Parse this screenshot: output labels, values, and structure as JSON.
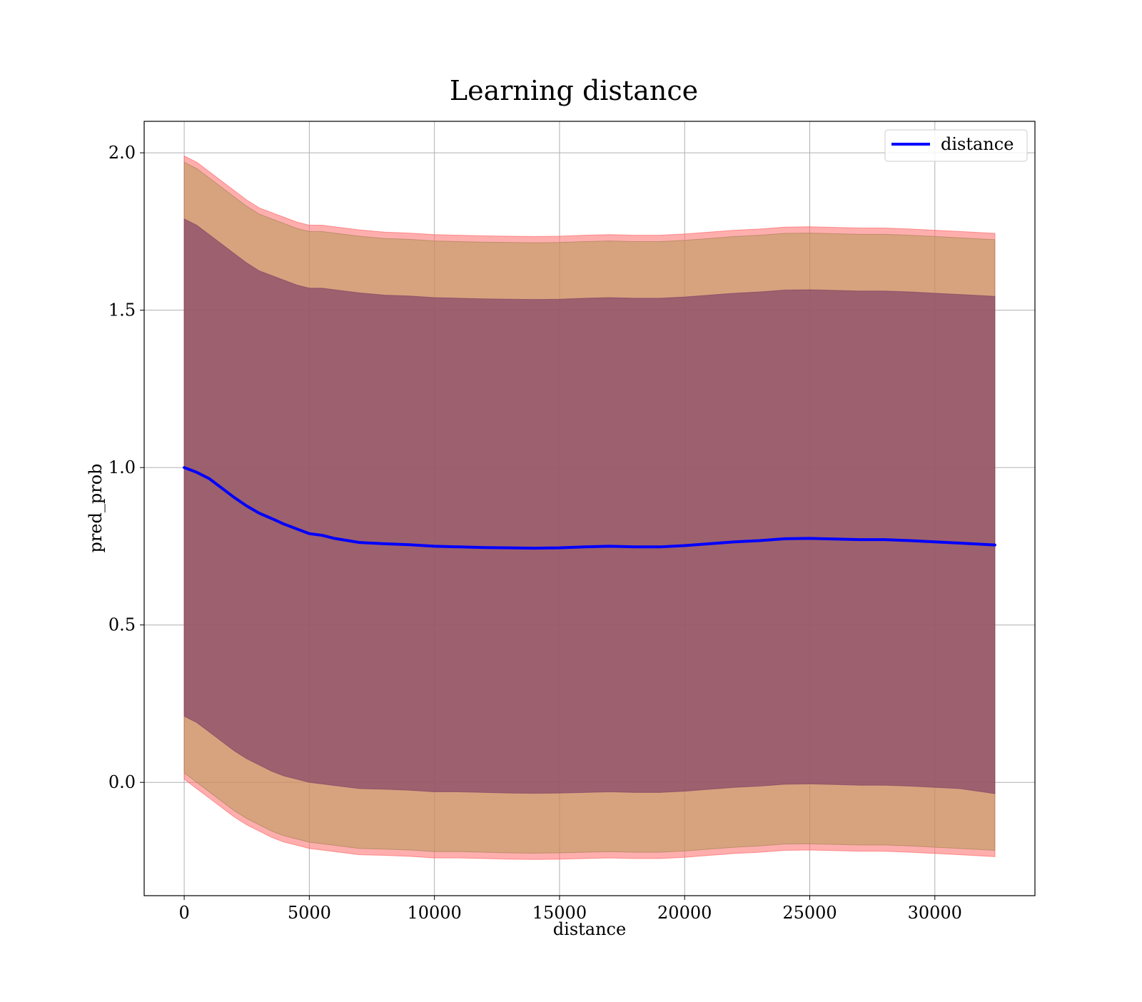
{
  "chart_data": {
    "type": "line",
    "title": "Learning distance",
    "xlabel": "distance",
    "ylabel": "pred_prob",
    "xlim": [
      -1600,
      34000
    ],
    "ylim": [
      -0.36,
      2.1
    ],
    "xticks": [
      0,
      5000,
      10000,
      15000,
      20000,
      25000,
      30000
    ],
    "xtick_labels": [
      "0",
      "5000",
      "10000",
      "15000",
      "20000",
      "25000",
      "30000"
    ],
    "yticks": [
      0.0,
      0.5,
      1.0,
      1.5,
      2.0
    ],
    "ytick_labels": [
      "0.0",
      "0.5",
      "1.0",
      "1.5",
      "2.0"
    ],
    "grid": true,
    "legend_position": "top-right",
    "colors": {
      "line": "#0000ff",
      "outer_band": "#ff6b6b",
      "middle_band": "#b79a58",
      "inner_band": "#8a4a6a"
    },
    "series": [
      {
        "name": "distance",
        "x": [
          0,
          500,
          1000,
          1500,
          2000,
          2500,
          3000,
          3500,
          4000,
          4500,
          5000,
          5500,
          6000,
          7000,
          8000,
          9000,
          10000,
          11000,
          12000,
          13000,
          14000,
          15000,
          16000,
          17000,
          18000,
          19000,
          20000,
          21000,
          22000,
          23000,
          24000,
          25000,
          26000,
          27000,
          28000,
          29000,
          30000,
          31000,
          32400
        ],
        "y": [
          1.0,
          0.985,
          0.965,
          0.935,
          0.905,
          0.878,
          0.855,
          0.838,
          0.82,
          0.805,
          0.79,
          0.785,
          0.775,
          0.762,
          0.758,
          0.755,
          0.75,
          0.748,
          0.746,
          0.745,
          0.744,
          0.745,
          0.748,
          0.75,
          0.748,
          0.748,
          0.752,
          0.758,
          0.764,
          0.768,
          0.774,
          0.775,
          0.773,
          0.771,
          0.771,
          0.768,
          0.764,
          0.76,
          0.754
        ]
      }
    ],
    "bands": [
      {
        "role": "outer",
        "lower": [
          0.01,
          -0.02,
          -0.05,
          -0.08,
          -0.11,
          -0.135,
          -0.155,
          -0.175,
          -0.19,
          -0.2,
          -0.21,
          -0.215,
          -0.22,
          -0.23,
          -0.232,
          -0.235,
          -0.24,
          -0.24,
          -0.242,
          -0.244,
          -0.245,
          -0.244,
          -0.242,
          -0.24,
          -0.242,
          -0.242,
          -0.238,
          -0.232,
          -0.226,
          -0.222,
          -0.216,
          -0.215,
          -0.217,
          -0.219,
          -0.219,
          -0.222,
          -0.226,
          -0.23,
          -0.236
        ],
        "upper": [
          1.99,
          1.97,
          1.94,
          1.91,
          1.88,
          1.85,
          1.825,
          1.81,
          1.795,
          1.78,
          1.77,
          1.77,
          1.765,
          1.755,
          1.748,
          1.745,
          1.74,
          1.738,
          1.736,
          1.735,
          1.734,
          1.735,
          1.738,
          1.74,
          1.738,
          1.738,
          1.742,
          1.748,
          1.754,
          1.758,
          1.764,
          1.765,
          1.763,
          1.761,
          1.761,
          1.758,
          1.754,
          1.75,
          1.744
        ]
      },
      {
        "role": "middle",
        "lower": [
          0.03,
          0.0,
          -0.03,
          -0.06,
          -0.09,
          -0.115,
          -0.135,
          -0.155,
          -0.17,
          -0.18,
          -0.19,
          -0.195,
          -0.2,
          -0.21,
          -0.212,
          -0.215,
          -0.22,
          -0.22,
          -0.222,
          -0.224,
          -0.225,
          -0.224,
          -0.222,
          -0.22,
          -0.222,
          -0.222,
          -0.218,
          -0.212,
          -0.206,
          -0.202,
          -0.196,
          -0.195,
          -0.197,
          -0.199,
          -0.199,
          -0.202,
          -0.206,
          -0.21,
          -0.216
        ],
        "upper": [
          1.97,
          1.95,
          1.92,
          1.89,
          1.86,
          1.83,
          1.805,
          1.79,
          1.775,
          1.76,
          1.75,
          1.75,
          1.745,
          1.735,
          1.728,
          1.725,
          1.72,
          1.718,
          1.716,
          1.715,
          1.714,
          1.715,
          1.718,
          1.72,
          1.718,
          1.718,
          1.722,
          1.728,
          1.734,
          1.738,
          1.744,
          1.745,
          1.743,
          1.741,
          1.741,
          1.738,
          1.734,
          1.73,
          1.724
        ]
      },
      {
        "role": "inner",
        "lower": [
          0.21,
          0.19,
          0.16,
          0.13,
          0.1,
          0.075,
          0.055,
          0.035,
          0.02,
          0.01,
          0.0,
          -0.005,
          -0.01,
          -0.02,
          -0.022,
          -0.025,
          -0.03,
          -0.03,
          -0.032,
          -0.034,
          -0.035,
          -0.034,
          -0.032,
          -0.03,
          -0.032,
          -0.032,
          -0.028,
          -0.022,
          -0.016,
          -0.012,
          -0.006,
          -0.005,
          -0.007,
          -0.009,
          -0.009,
          -0.012,
          -0.016,
          -0.02,
          -0.036
        ],
        "upper": [
          1.79,
          1.77,
          1.74,
          1.71,
          1.68,
          1.65,
          1.625,
          1.61,
          1.595,
          1.58,
          1.57,
          1.57,
          1.565,
          1.555,
          1.548,
          1.545,
          1.54,
          1.538,
          1.536,
          1.535,
          1.534,
          1.535,
          1.538,
          1.54,
          1.538,
          1.538,
          1.542,
          1.548,
          1.554,
          1.558,
          1.564,
          1.565,
          1.563,
          1.561,
          1.561,
          1.558,
          1.554,
          1.55,
          1.544
        ]
      }
    ]
  }
}
